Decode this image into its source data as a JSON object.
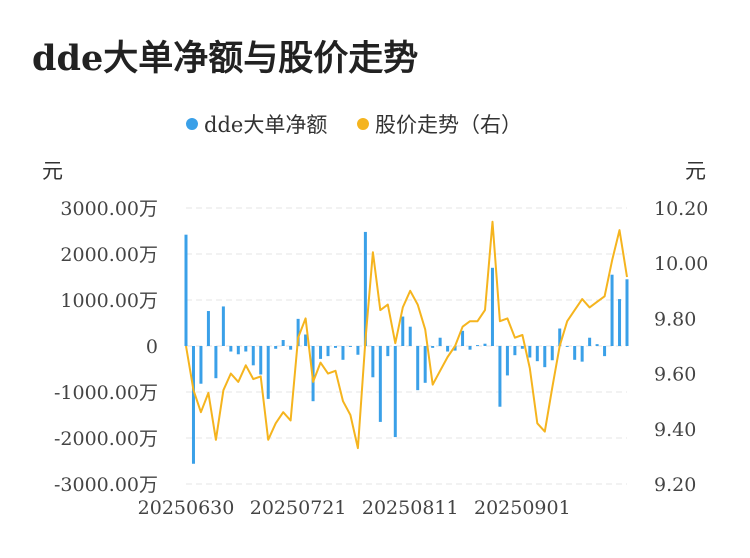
{
  "title": "dde大单净额与股价走势",
  "legend": [
    {
      "label": "dde大单净额",
      "color": "#3aa0e8"
    },
    {
      "label": "股价走势（右）",
      "color": "#f5b41e"
    }
  ],
  "left_unit": "元",
  "right_unit": "元",
  "chart_data": {
    "type": "bar",
    "x_tick_labels": [
      "20250630",
      "20250721",
      "20250811",
      "20250901"
    ],
    "x_tick_positions": [
      0,
      15,
      30,
      45
    ],
    "y_left": {
      "min": -3000,
      "max": 3000,
      "ticks": [
        3000,
        2000,
        1000,
        0,
        -1000,
        -2000,
        -3000
      ],
      "tick_labels": [
        "3000.00万",
        "2000.00万",
        "1000.00万",
        "0",
        "-1000.00万",
        "-2000.00万",
        "-3000.00万"
      ]
    },
    "y_right": {
      "min": 9.2,
      "max": 10.2,
      "ticks": [
        10.2,
        10.0,
        9.8,
        9.6,
        9.4,
        9.2
      ],
      "tick_labels": [
        "10.20",
        "10.00",
        "9.80",
        "9.60",
        "9.40",
        "9.20"
      ]
    },
    "grid": true,
    "series": [
      {
        "name": "dde大单净额",
        "type": "bar",
        "color": "#3aa0e8",
        "values": [
          2420,
          -2560,
          -820,
          760,
          -700,
          860,
          -120,
          -180,
          -120,
          -420,
          -620,
          -1150,
          -60,
          130,
          -80,
          590,
          250,
          -1200,
          -280,
          -220,
          -40,
          -300,
          -20,
          -190,
          2480,
          -680,
          -1650,
          -220,
          -1980,
          640,
          420,
          -960,
          -800,
          -40,
          180,
          -120,
          -100,
          330,
          -80,
          20,
          50,
          1700,
          -1320,
          -640,
          -200,
          -60,
          -250,
          -330,
          -460,
          -310,
          380,
          -20,
          -300,
          -340,
          180,
          40,
          -220,
          1550,
          1020,
          1450
        ]
      },
      {
        "name": "股价走势（右）",
        "type": "line",
        "color": "#f5b41e",
        "values": [
          9.7,
          9.54,
          9.46,
          9.53,
          9.36,
          9.54,
          9.6,
          9.57,
          9.63,
          9.58,
          9.59,
          9.36,
          9.42,
          9.46,
          9.43,
          9.73,
          9.8,
          9.57,
          9.64,
          9.6,
          9.61,
          9.5,
          9.45,
          9.33,
          9.72,
          10.04,
          9.83,
          9.85,
          9.71,
          9.84,
          9.9,
          9.85,
          9.76,
          9.56,
          9.61,
          9.66,
          9.7,
          9.77,
          9.79,
          9.79,
          9.83,
          10.15,
          9.79,
          9.8,
          9.73,
          9.74,
          9.62,
          9.42,
          9.39,
          9.55,
          9.7,
          9.79,
          9.83,
          9.87,
          9.84,
          9.86,
          9.88,
          10.01,
          10.12,
          9.95
        ]
      }
    ]
  }
}
